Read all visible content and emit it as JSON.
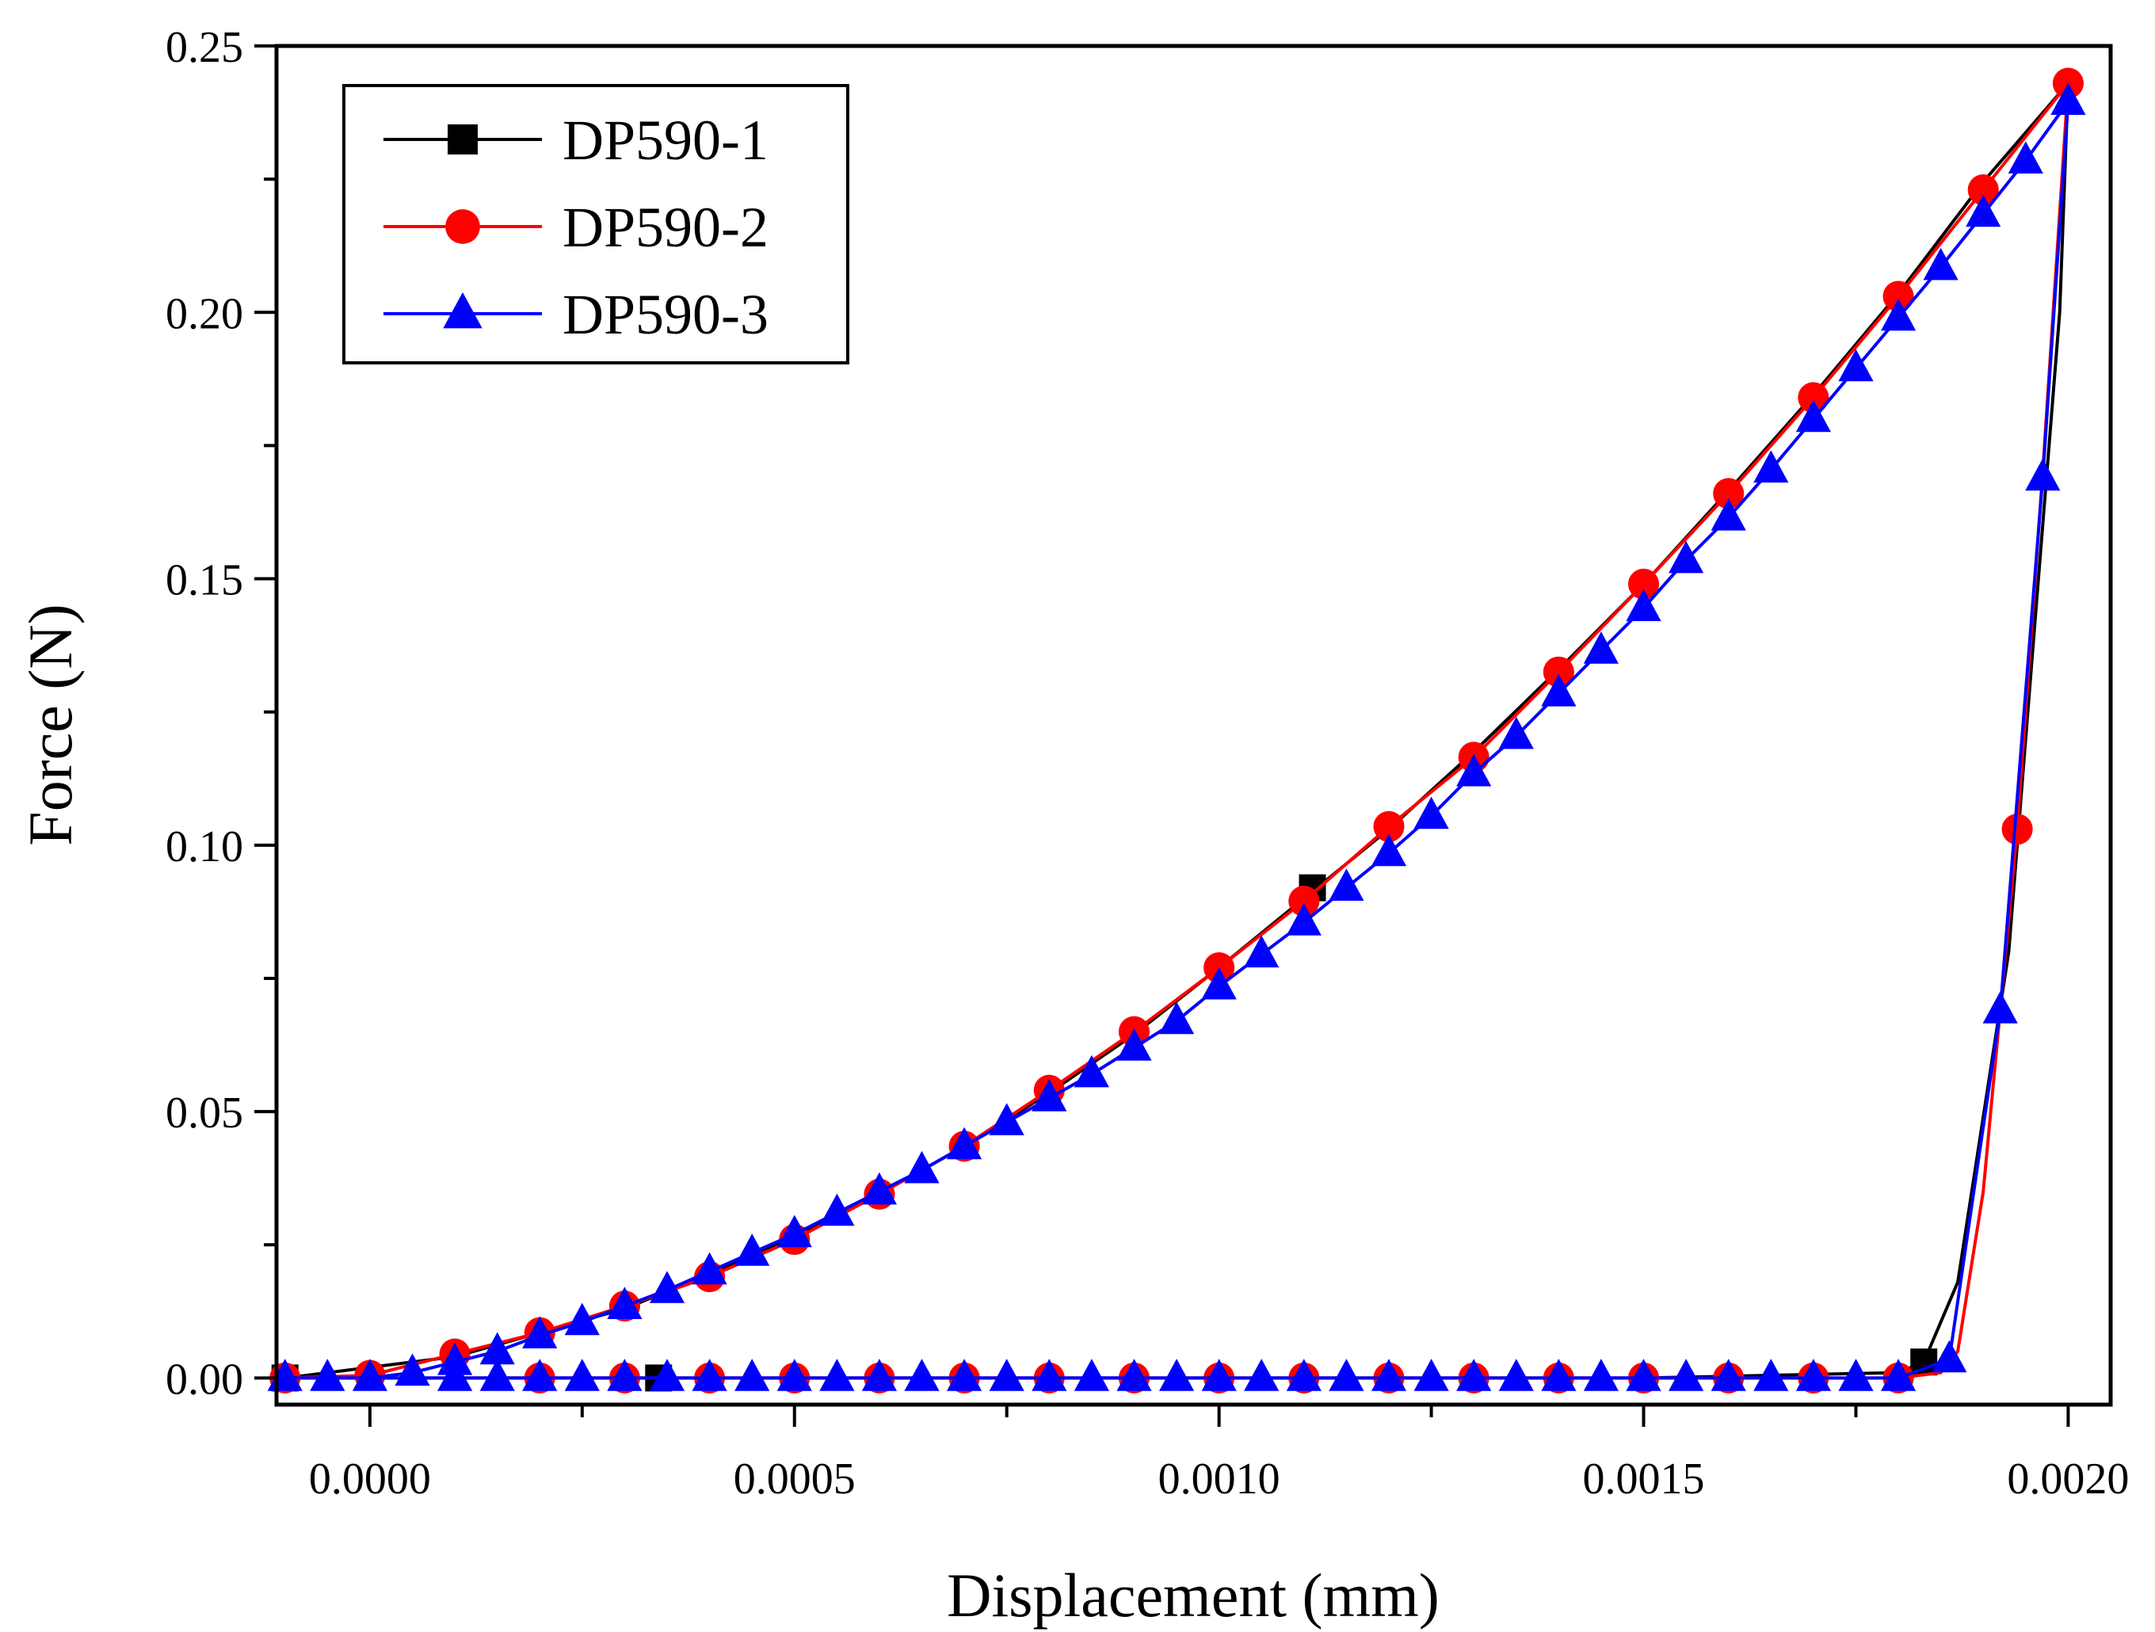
{
  "chart_data": {
    "type": "line",
    "title": "",
    "xlabel": "Displacement (mm)",
    "ylabel": "Force (N)",
    "xlim": [
      -0.00011,
      0.00205
    ],
    "ylim": [
      -0.005,
      0.25
    ],
    "x_ticks": [
      0.0,
      0.0005,
      0.001,
      0.0015,
      0.002
    ],
    "x_tick_labels": [
      "0.0000",
      "0.0005",
      "0.0010",
      "0.0015",
      "0.0020"
    ],
    "y_ticks": [
      0.0,
      0.05,
      0.1,
      0.15,
      0.2,
      0.25
    ],
    "y_tick_labels": [
      "0.00",
      "0.05",
      "0.10",
      "0.15",
      "0.20",
      "0.25"
    ],
    "grid": false,
    "legend_position": "top-left",
    "series": [
      {
        "name": "DP590-1",
        "color": "#000000",
        "marker": "square",
        "loading": [
          [
            -0.0001,
            0
          ],
          [
            0.0001,
            0.004
          ],
          [
            0.0002,
            0.0085
          ],
          [
            0.0003,
            0.013
          ],
          [
            0.0004,
            0.0195
          ],
          [
            0.0005,
            0.0265
          ],
          [
            0.0006,
            0.0345
          ],
          [
            0.0007,
            0.0435
          ],
          [
            0.0008,
            0.0535
          ],
          [
            0.0009,
            0.0645
          ],
          [
            0.001,
            0.077
          ],
          [
            0.0011,
            0.09
          ],
          [
            0.0012,
            0.103
          ],
          [
            0.0013,
            0.1175
          ],
          [
            0.0014,
            0.133
          ],
          [
            0.0015,
            0.149
          ],
          [
            0.0016,
            0.1665
          ],
          [
            0.0017,
            0.1845
          ],
          [
            0.0018,
            0.2035
          ],
          [
            0.0019,
            0.2245
          ],
          [
            0.002,
            0.243
          ]
        ],
        "unloading": [
          [
            0.002,
            0.243
          ],
          [
            0.00199,
            0.2
          ],
          [
            0.00196,
            0.14
          ],
          [
            0.00193,
            0.08
          ],
          [
            0.00187,
            0.018
          ],
          [
            0.00183,
            0.003
          ],
          [
            0.0018,
            0.001
          ],
          [
            0.0015,
            0
          ],
          [
            0.001,
            0
          ],
          [
            0.0005,
            0
          ],
          [
            0.0,
            0
          ],
          [
            -0.0001,
            0
          ]
        ],
        "markers": [
          [
            -0.0001,
            0
          ],
          [
            0.00034,
            0
          ],
          [
            0.00111,
            0.092
          ],
          [
            0.00183,
            0.003
          ]
        ]
      },
      {
        "name": "DP590-2",
        "color": "#ff0000",
        "marker": "circle",
        "loading": [
          [
            -0.0001,
            0
          ],
          [
            0.0,
            0.0005
          ],
          [
            0.0001,
            0.0045
          ],
          [
            0.0002,
            0.0085
          ],
          [
            0.0003,
            0.0135
          ],
          [
            0.0004,
            0.019
          ],
          [
            0.0005,
            0.026
          ],
          [
            0.0006,
            0.0345
          ],
          [
            0.0007,
            0.0435
          ],
          [
            0.0008,
            0.054
          ],
          [
            0.0009,
            0.065
          ],
          [
            0.001,
            0.077
          ],
          [
            0.0011,
            0.0895
          ],
          [
            0.0012,
            0.1035
          ],
          [
            0.0013,
            0.1165
          ],
          [
            0.0014,
            0.1325
          ],
          [
            0.0015,
            0.149
          ],
          [
            0.0016,
            0.166
          ],
          [
            0.0017,
            0.184
          ],
          [
            0.0018,
            0.203
          ],
          [
            0.0019,
            0.223
          ],
          [
            0.002,
            0.243
          ]
        ],
        "unloading": [
          [
            0.002,
            0.243
          ],
          [
            0.00197,
            0.17
          ],
          [
            0.00194,
            0.103
          ],
          [
            0.0019,
            0.035
          ],
          [
            0.00187,
            0.005
          ],
          [
            0.00185,
            0.001
          ],
          [
            0.0018,
            0
          ],
          [
            0.0015,
            0
          ],
          [
            0.001,
            0
          ],
          [
            0.0005,
            0
          ],
          [
            0.0,
            0
          ],
          [
            -0.0001,
            0
          ]
        ],
        "markers": [
          [
            -0.0001,
            0
          ],
          [
            0.0,
            0.0005
          ],
          [
            0.0001,
            0.0045
          ],
          [
            0.0002,
            0.0085
          ],
          [
            0.0003,
            0.0135
          ],
          [
            0.0004,
            0.019
          ],
          [
            0.0005,
            0.026
          ],
          [
            0.0006,
            0.0345
          ],
          [
            0.0007,
            0.0435
          ],
          [
            0.0008,
            0.054
          ],
          [
            0.0009,
            0.065
          ],
          [
            0.001,
            0.077
          ],
          [
            0.0011,
            0.0895
          ],
          [
            0.0012,
            0.1035
          ],
          [
            0.0013,
            0.1165
          ],
          [
            0.0014,
            0.1325
          ],
          [
            0.0015,
            0.149
          ],
          [
            0.0016,
            0.166
          ],
          [
            0.0017,
            0.184
          ],
          [
            0.0018,
            0.203
          ],
          [
            0.0019,
            0.223
          ],
          [
            0.002,
            0.243
          ],
          [
            0.00194,
            0.103
          ],
          [
            0.0018,
            0
          ],
          [
            0.0017,
            0
          ],
          [
            0.0016,
            0
          ],
          [
            0.0015,
            0
          ],
          [
            0.0014,
            0
          ],
          [
            0.0013,
            0
          ],
          [
            0.0012,
            0
          ],
          [
            0.0011,
            0
          ],
          [
            0.001,
            0
          ],
          [
            0.0009,
            0
          ],
          [
            0.0008,
            0
          ],
          [
            0.0007,
            0
          ],
          [
            0.0006,
            0
          ],
          [
            0.0005,
            0
          ],
          [
            0.0004,
            0
          ],
          [
            0.0003,
            0
          ],
          [
            0.0002,
            0
          ]
        ]
      },
      {
        "name": "DP590-3",
        "color": "#0000ff",
        "marker": "triangle",
        "loading": [
          [
            -0.0001,
            0
          ],
          [
            -5e-05,
            0
          ],
          [
            0.0,
            0
          ],
          [
            5e-05,
            0.001
          ],
          [
            0.0001,
            0.003
          ],
          [
            0.00015,
            0.005
          ],
          [
            0.0002,
            0.008
          ],
          [
            0.00025,
            0.0105
          ],
          [
            0.0003,
            0.0135
          ],
          [
            0.00035,
            0.0165
          ],
          [
            0.0004,
            0.02
          ],
          [
            0.00045,
            0.0235
          ],
          [
            0.0005,
            0.027
          ],
          [
            0.00055,
            0.031
          ],
          [
            0.0006,
            0.035
          ],
          [
            0.00065,
            0.039
          ],
          [
            0.0007,
            0.0435
          ],
          [
            0.00075,
            0.048
          ],
          [
            0.0008,
            0.0525
          ],
          [
            0.00085,
            0.057
          ],
          [
            0.0009,
            0.062
          ],
          [
            0.00095,
            0.067
          ],
          [
            0.001,
            0.0735
          ],
          [
            0.00105,
            0.0795
          ],
          [
            0.0011,
            0.0855
          ],
          [
            0.00115,
            0.092
          ],
          [
            0.0012,
            0.0985
          ],
          [
            0.00125,
            0.1055
          ],
          [
            0.0013,
            0.1135
          ],
          [
            0.00135,
            0.1205
          ],
          [
            0.0014,
            0.1285
          ],
          [
            0.00145,
            0.1365
          ],
          [
            0.0015,
            0.1445
          ],
          [
            0.00155,
            0.1535
          ],
          [
            0.0016,
            0.1615
          ],
          [
            0.00165,
            0.1705
          ],
          [
            0.0017,
            0.18
          ],
          [
            0.00175,
            0.1895
          ],
          [
            0.0018,
            0.199
          ],
          [
            0.00185,
            0.2085
          ],
          [
            0.0019,
            0.2185
          ],
          [
            0.00195,
            0.2285
          ],
          [
            0.002,
            0.2395
          ]
        ],
        "unloading": [
          [
            0.002,
            0.2395
          ],
          [
            0.00197,
            0.169
          ],
          [
            0.00192,
            0.069
          ],
          [
            0.00186,
            0.0035
          ],
          [
            0.0018,
            0
          ],
          [
            0.0015,
            0
          ],
          [
            0.001,
            0
          ],
          [
            0.0005,
            0
          ],
          [
            0.0,
            0
          ],
          [
            -0.0001,
            0
          ]
        ],
        "markers": [
          [
            -0.0001,
            0
          ],
          [
            -5e-05,
            0
          ],
          [
            0.0,
            0
          ],
          [
            5e-05,
            0.001
          ],
          [
            0.0001,
            0.003
          ],
          [
            0.00015,
            0.005
          ],
          [
            0.0002,
            0.008
          ],
          [
            0.00025,
            0.0105
          ],
          [
            0.0003,
            0.0135
          ],
          [
            0.00035,
            0.0165
          ],
          [
            0.0004,
            0.02
          ],
          [
            0.00045,
            0.0235
          ],
          [
            0.0005,
            0.027
          ],
          [
            0.00055,
            0.031
          ],
          [
            0.0006,
            0.035
          ],
          [
            0.00065,
            0.039
          ],
          [
            0.0007,
            0.0435
          ],
          [
            0.00075,
            0.048
          ],
          [
            0.0008,
            0.0525
          ],
          [
            0.00085,
            0.057
          ],
          [
            0.0009,
            0.062
          ],
          [
            0.00095,
            0.067
          ],
          [
            0.001,
            0.0735
          ],
          [
            0.00105,
            0.0795
          ],
          [
            0.0011,
            0.0855
          ],
          [
            0.00115,
            0.092
          ],
          [
            0.0012,
            0.0985
          ],
          [
            0.00125,
            0.1055
          ],
          [
            0.0013,
            0.1135
          ],
          [
            0.00135,
            0.1205
          ],
          [
            0.0014,
            0.1285
          ],
          [
            0.00145,
            0.1365
          ],
          [
            0.0015,
            0.1445
          ],
          [
            0.00155,
            0.1535
          ],
          [
            0.0016,
            0.1615
          ],
          [
            0.00165,
            0.1705
          ],
          [
            0.0017,
            0.18
          ],
          [
            0.00175,
            0.1895
          ],
          [
            0.0018,
            0.199
          ],
          [
            0.00185,
            0.2085
          ],
          [
            0.0019,
            0.2185
          ],
          [
            0.00195,
            0.2285
          ],
          [
            0.002,
            0.2395
          ],
          [
            0.00197,
            0.169
          ],
          [
            0.00192,
            0.069
          ],
          [
            0.00186,
            0.0035
          ],
          [
            0.0018,
            0
          ],
          [
            0.00175,
            0
          ],
          [
            0.0017,
            0
          ],
          [
            0.00165,
            0
          ],
          [
            0.0016,
            0
          ],
          [
            0.00155,
            0
          ],
          [
            0.0015,
            0
          ],
          [
            0.00145,
            0
          ],
          [
            0.0014,
            0
          ],
          [
            0.00135,
            0
          ],
          [
            0.0013,
            0
          ],
          [
            0.00125,
            0
          ],
          [
            0.0012,
            0
          ],
          [
            0.00115,
            0
          ],
          [
            0.0011,
            0
          ],
          [
            0.00105,
            0
          ],
          [
            0.001,
            0
          ],
          [
            0.00095,
            0
          ],
          [
            0.0009,
            0
          ],
          [
            0.00085,
            0
          ],
          [
            0.0008,
            0
          ],
          [
            0.00075,
            0
          ],
          [
            0.0007,
            0
          ],
          [
            0.00065,
            0
          ],
          [
            0.0006,
            0
          ],
          [
            0.00055,
            0
          ],
          [
            0.0005,
            0
          ],
          [
            0.00045,
            0
          ],
          [
            0.0004,
            0
          ],
          [
            0.00035,
            0
          ],
          [
            0.0003,
            0
          ],
          [
            0.00025,
            0
          ],
          [
            0.0002,
            0
          ],
          [
            0.00015,
            0
          ],
          [
            0.0001,
            0
          ]
        ]
      }
    ]
  }
}
